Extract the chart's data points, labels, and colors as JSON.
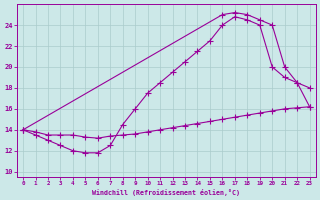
{
  "xlabel": "Windchill (Refroidissement éolien,°C)",
  "bg_color": "#cce8e8",
  "line_color": "#990099",
  "grid_color": "#aacccc",
  "xlim": [
    -0.5,
    23.5
  ],
  "ylim": [
    9.5,
    26.0
  ],
  "xticks": [
    0,
    1,
    2,
    3,
    4,
    5,
    6,
    7,
    8,
    9,
    10,
    11,
    12,
    13,
    14,
    15,
    16,
    17,
    18,
    19,
    20,
    21,
    22,
    23
  ],
  "yticks": [
    10,
    12,
    14,
    16,
    18,
    20,
    22,
    24
  ],
  "series": [
    {
      "x": [
        0,
        1,
        2,
        3,
        4,
        5,
        6,
        7,
        8,
        9,
        10,
        11,
        12,
        13,
        14,
        15,
        16,
        17,
        18,
        19,
        20,
        21,
        22,
        23
      ],
      "y": [
        14.0,
        13.8,
        13.5,
        13.5,
        13.5,
        13.3,
        13.2,
        13.4,
        13.5,
        13.6,
        13.8,
        14.0,
        14.2,
        14.4,
        14.6,
        14.8,
        15.0,
        15.2,
        15.4,
        15.6,
        15.8,
        16.0,
        16.1,
        16.2
      ]
    },
    {
      "x": [
        0,
        1,
        2,
        3,
        4,
        5,
        6,
        7,
        8,
        9,
        10,
        11,
        12,
        13,
        14,
        15,
        16,
        17,
        18,
        19,
        20,
        21,
        22,
        23
      ],
      "y": [
        14.0,
        13.5,
        13.0,
        12.5,
        12.0,
        11.8,
        11.8,
        12.5,
        14.5,
        16.0,
        17.5,
        18.5,
        19.5,
        20.5,
        21.5,
        22.5,
        24.0,
        24.8,
        24.5,
        24.0,
        20.0,
        19.0,
        18.5,
        18.0
      ]
    },
    {
      "x": [
        0,
        16,
        17,
        18,
        19,
        20,
        21,
        22,
        23
      ],
      "y": [
        14.0,
        25.0,
        25.2,
        25.0,
        24.5,
        24.0,
        20.0,
        18.5,
        16.2
      ]
    }
  ]
}
